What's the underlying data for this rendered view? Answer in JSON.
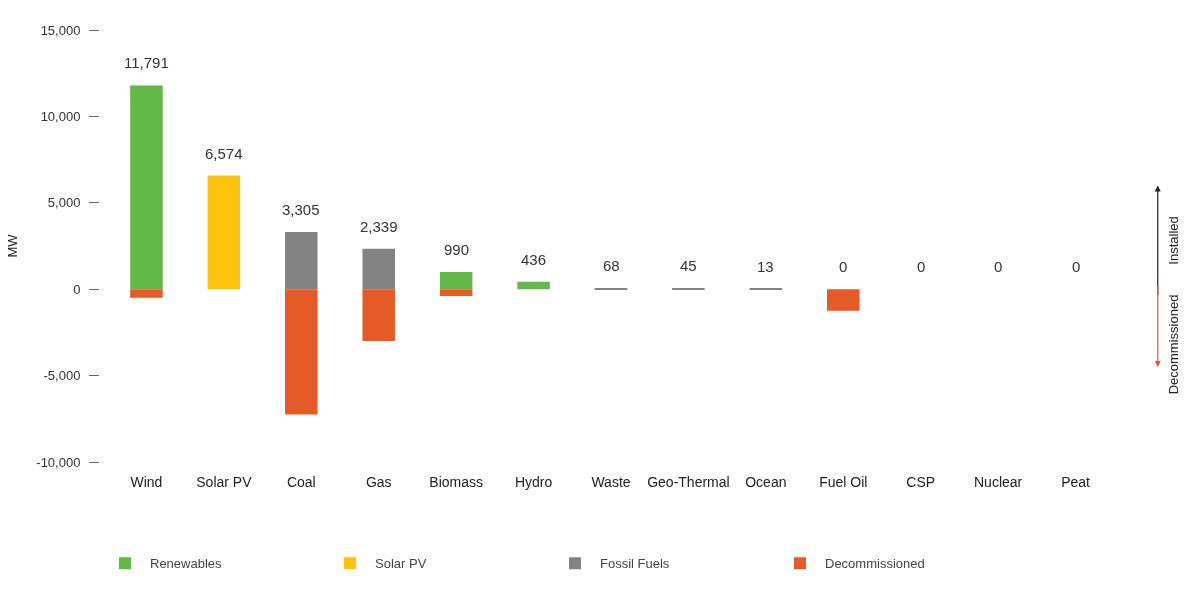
{
  "chart_data": {
    "type": "bar",
    "stacked": true,
    "ylabel": "MW",
    "categories": [
      "Wind",
      "Solar PV",
      "Coal",
      "Gas",
      "Biomass",
      "Hydro",
      "Waste",
      "Geo-Thermal",
      "Ocean",
      "Fuel Oil",
      "CSP",
      "Nuclear",
      "Peat"
    ],
    "series": [
      {
        "name": "Renewables",
        "color": "#62b946",
        "values": [
          11791,
          null,
          null,
          null,
          990,
          436,
          null,
          null,
          null,
          null,
          null,
          null,
          null
        ],
        "value_labels": [
          "11,791",
          null,
          null,
          null,
          "990",
          "436",
          null,
          null,
          null,
          null,
          null,
          null,
          null
        ]
      },
      {
        "name": "Solar PV",
        "color": "#ffc20e",
        "values": [
          null,
          6574,
          null,
          null,
          null,
          null,
          null,
          null,
          null,
          null,
          null,
          null,
          null
        ],
        "value_labels": [
          null,
          "6,574",
          null,
          null,
          null,
          null,
          null,
          null,
          null,
          null,
          null,
          null,
          null
        ]
      },
      {
        "name": "Fossil Fuels",
        "color": "#838383",
        "values": [
          null,
          null,
          3305,
          2339,
          null,
          null,
          68,
          45,
          13,
          0,
          0,
          0,
          0
        ],
        "value_labels": [
          null,
          null,
          "3,305",
          "2,339",
          null,
          null,
          "68",
          "45",
          "13",
          "0",
          "0",
          "0",
          "0"
        ]
      },
      {
        "name": "Decommissioned",
        "color": "#e55a27",
        "values": [
          -500,
          null,
          -7250,
          -3000,
          -400,
          null,
          null,
          null,
          null,
          -1250,
          null,
          null,
          null
        ]
      }
    ],
    "ylim": [
      -10000,
      15000
    ],
    "yticks": [
      {
        "value": 15000,
        "label": "15,000"
      },
      {
        "value": 10000,
        "label": "10,000"
      },
      {
        "value": 5000,
        "label": "5,000"
      },
      0,
      {
        "value": -5000,
        "label": "-5,000"
      },
      {
        "value": -10000,
        "label": "-10,000"
      }
    ],
    "legend": "bottom",
    "annotations": [
      "Installed",
      "Decommissioned"
    ]
  }
}
